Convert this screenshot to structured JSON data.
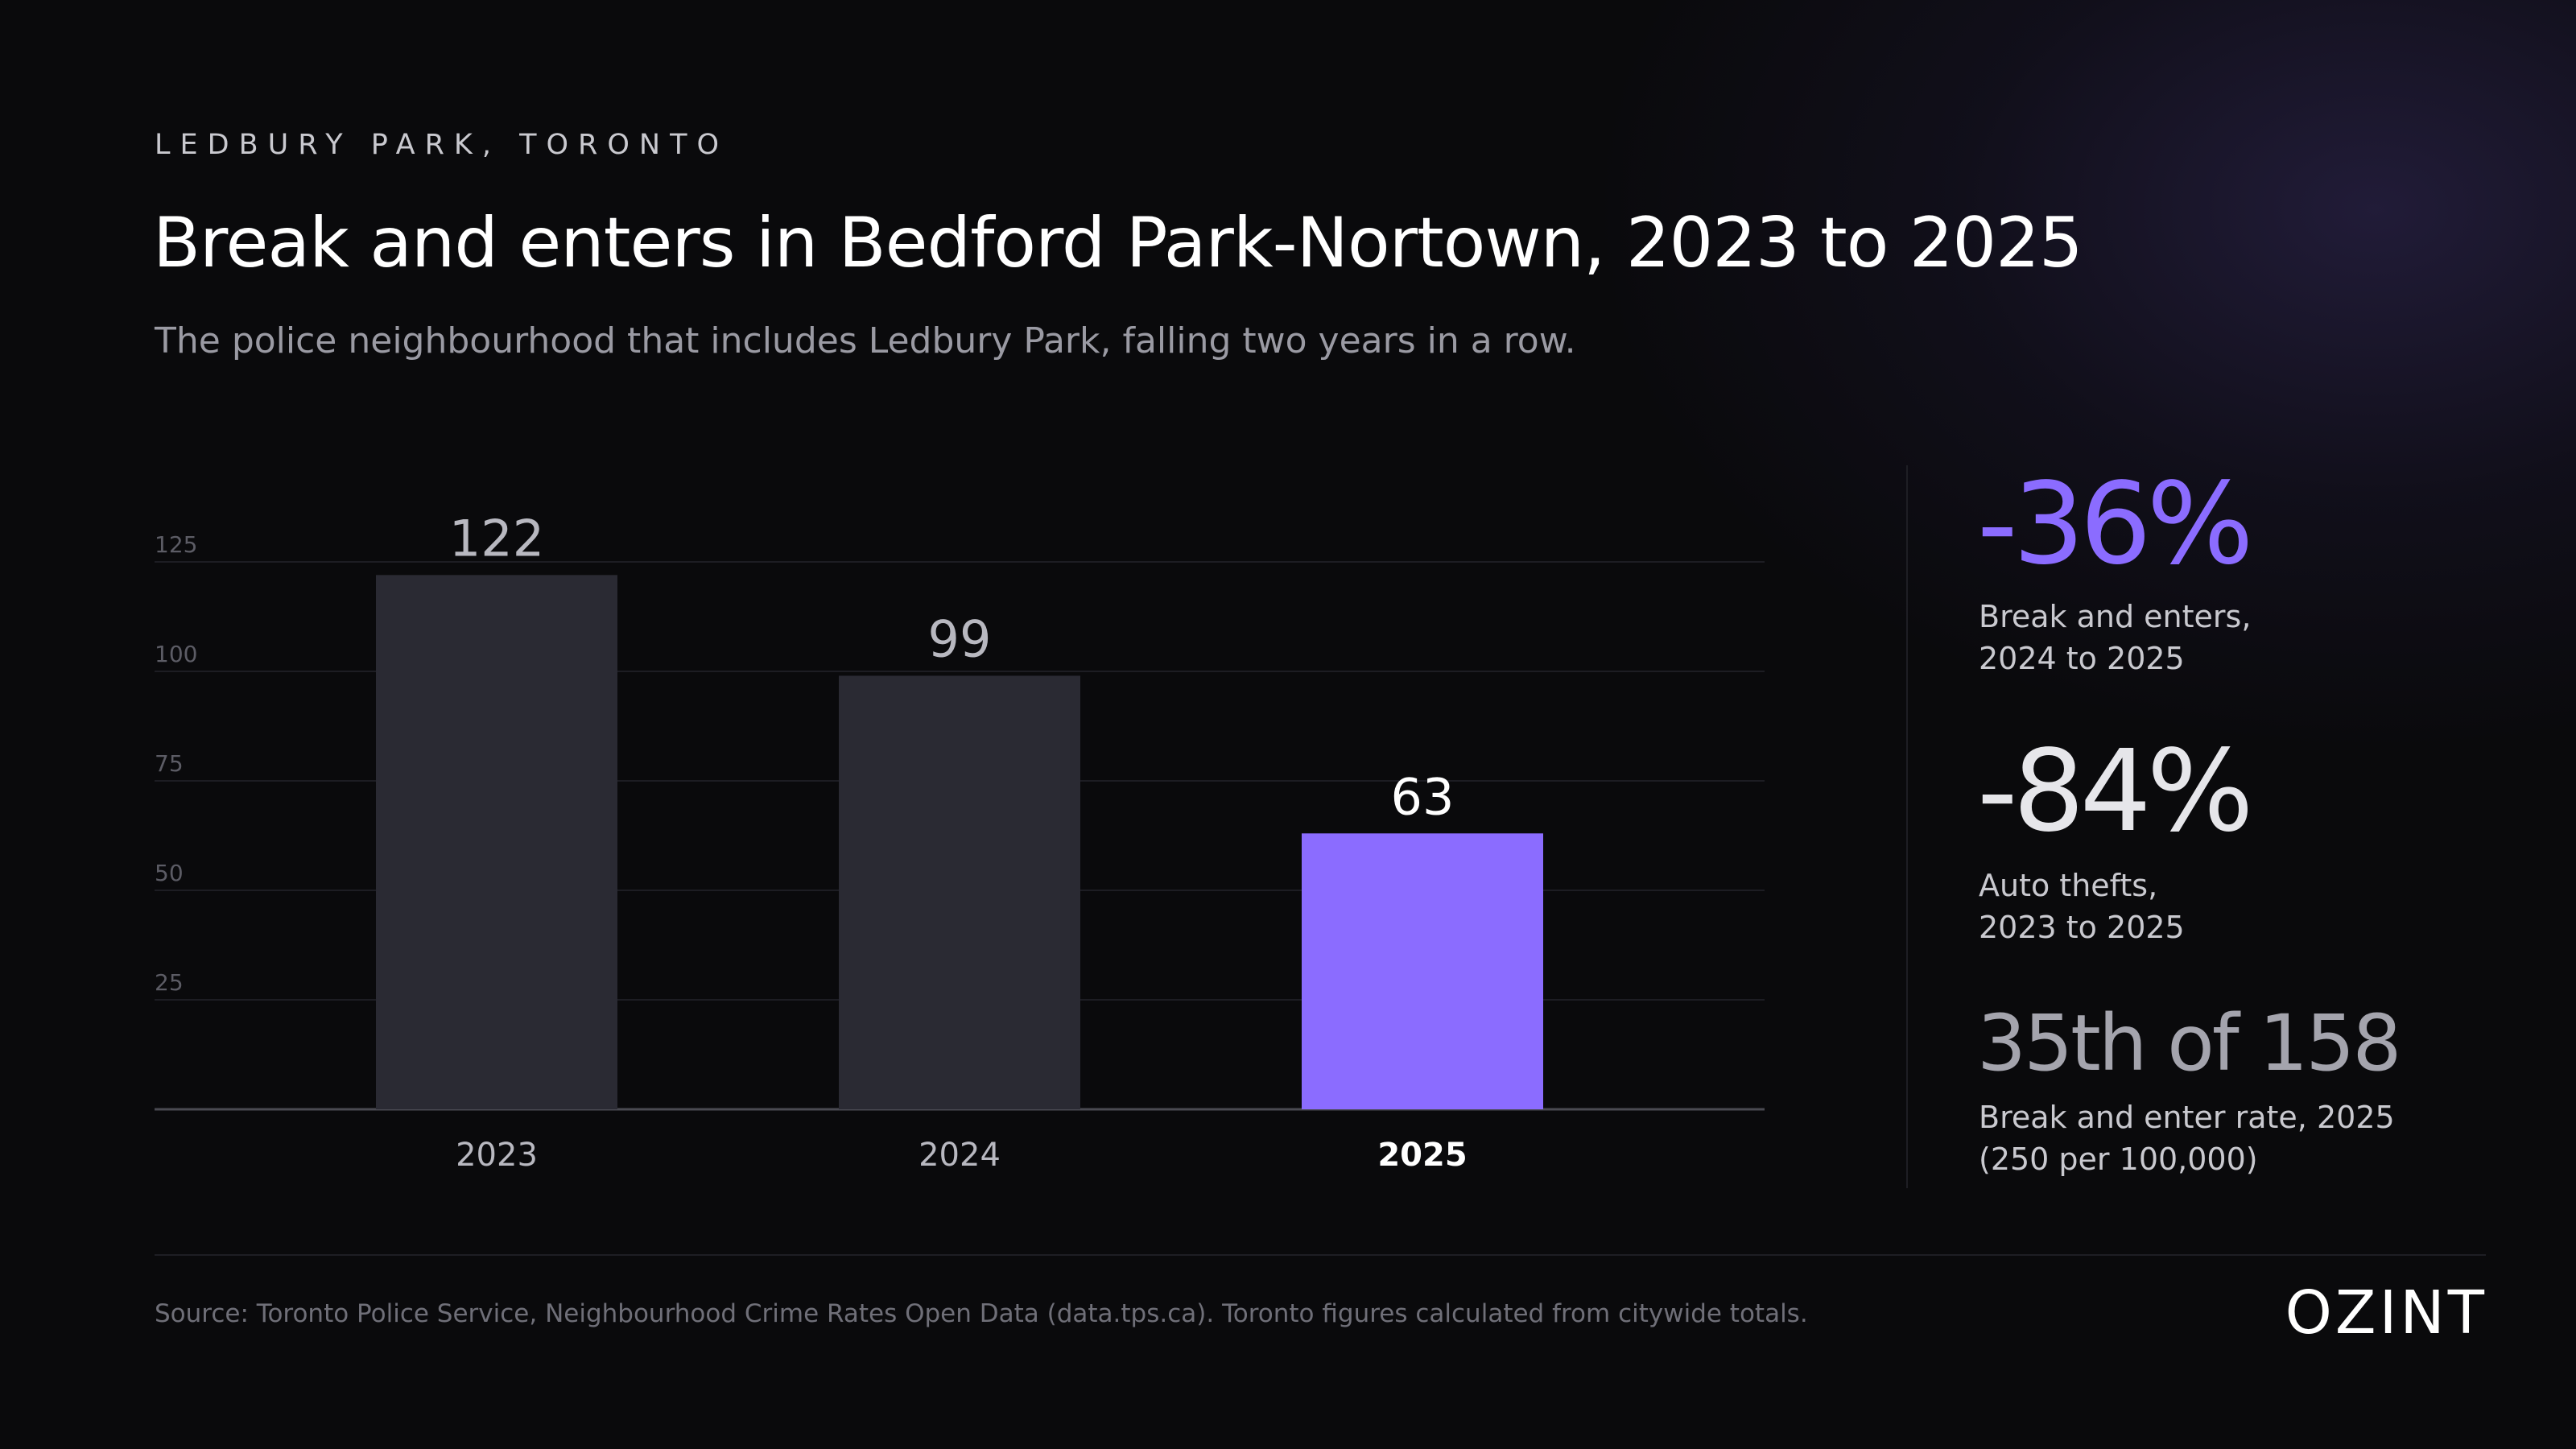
{
  "header": {
    "eyebrow": "LEDBURY PARK, TORONTO",
    "title": "Break and enters in Bedford Park-Nortown, 2023 to 2025",
    "subtitle": "The police neighbourhood that includes Ledbury Park, falling two years in a row."
  },
  "chart_data": {
    "type": "bar",
    "categories": [
      "2023",
      "2024",
      "2025"
    ],
    "values": [
      122,
      99,
      63
    ],
    "data_labels": [
      "122",
      "99",
      "63"
    ],
    "highlight_category": "2025",
    "yticks": [
      25,
      50,
      75,
      100,
      125
    ],
    "ylim": [
      0,
      125
    ],
    "grid": true,
    "colors": {
      "default_bar": "#2a2a33",
      "highlight_bar": "#8b6cff"
    }
  },
  "stats": [
    {
      "value": "-36%",
      "label_line1": "Break and enters,",
      "label_line2": "2024 to 2025",
      "color": "#8b6cff"
    },
    {
      "value": "-84%",
      "label_line1": "Auto thefts,",
      "label_line2": "2023 to 2025",
      "color": "#e6e6ea"
    },
    {
      "value": "35th of 158",
      "label_line1": "Break and enter rate, 2025",
      "label_line2": "(250 per 100,000)",
      "color": "#a4a4ad"
    }
  ],
  "footer": {
    "source": "Source: Toronto Police Service, Neighbourhood Crime Rates Open Data (data.tps.ca). Toronto figures calculated from citywide totals.",
    "logo": "OZINT"
  }
}
